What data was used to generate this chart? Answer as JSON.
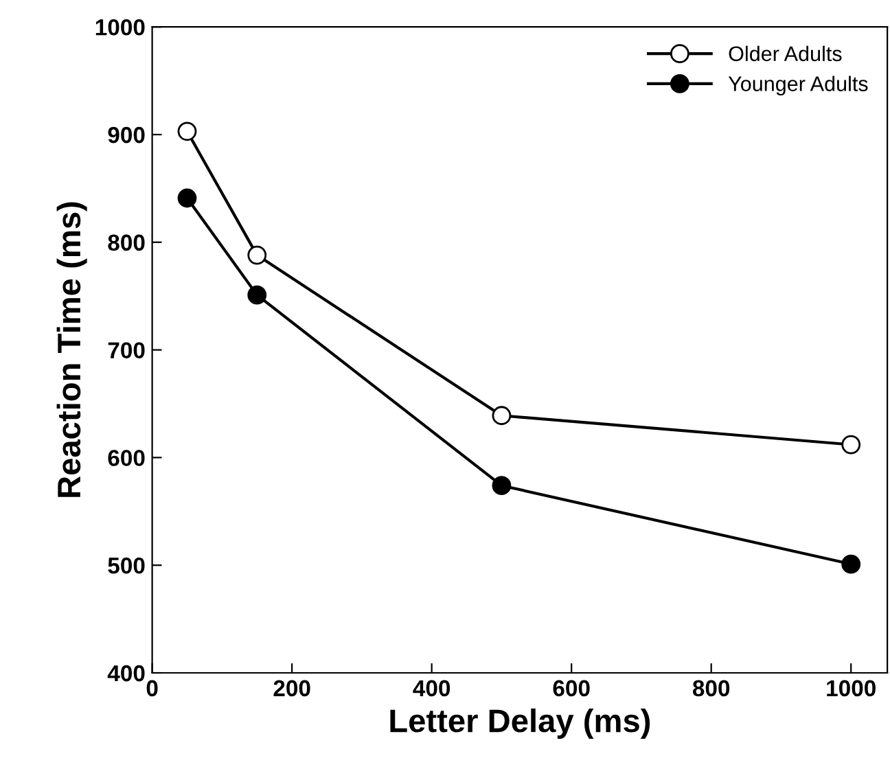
{
  "chart_data": {
    "type": "line",
    "xlabel": "Letter Delay (ms)",
    "ylabel": "Reaction Time (ms)",
    "x": [
      50,
      150,
      500,
      1000
    ],
    "series": [
      {
        "name": "Older Adults",
        "color": "#000000",
        "values": [
          903,
          788,
          639,
          612
        ]
      },
      {
        "name": "Younger Adults",
        "color": "#000000",
        "values": [
          841,
          751,
          574,
          501
        ]
      }
    ],
    "xlim": [
      0,
      1052
    ],
    "xticks": [
      0,
      200,
      400,
      600,
      800,
      1000
    ],
    "ylim": [
      400,
      1000
    ],
    "yticks": [
      400,
      500,
      600,
      700,
      800,
      900,
      1000
    ],
    "marker": "circle",
    "line_style": "solid",
    "grid": false,
    "legend": "top right"
  }
}
